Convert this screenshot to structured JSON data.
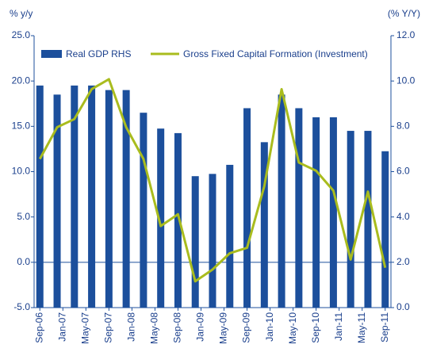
{
  "chart_data": {
    "type": "bar-line",
    "y_label": "% y/y",
    "y2_label": "(% Y/Y)",
    "x": [
      0,
      3,
      6,
      9,
      12,
      15,
      18,
      21,
      24,
      27,
      30,
      33,
      36,
      39,
      42,
      45,
      48,
      51,
      54,
      57,
      60
    ],
    "xlim": [
      -1,
      61
    ],
    "xticks": [
      {
        "value": 0,
        "label": "Sep-06"
      },
      {
        "value": 4,
        "label": "Jan-07"
      },
      {
        "value": 8,
        "label": "May-07"
      },
      {
        "value": 12,
        "label": "Sep-07"
      },
      {
        "value": 16,
        "label": "Jan-08"
      },
      {
        "value": 20,
        "label": "May-08"
      },
      {
        "value": 24,
        "label": "Sep-08"
      },
      {
        "value": 28,
        "label": "Jan-09"
      },
      {
        "value": 32,
        "label": "May-09"
      },
      {
        "value": 36,
        "label": "Sep-09"
      },
      {
        "value": 40,
        "label": "Jan-10"
      },
      {
        "value": 44,
        "label": "May-10"
      },
      {
        "value": 48,
        "label": "Sep-10"
      },
      {
        "value": 52,
        "label": "Jan-11"
      },
      {
        "value": 56,
        "label": "May-11"
      },
      {
        "value": 60,
        "label": "Sep-11"
      }
    ],
    "ylim": [
      -5,
      25
    ],
    "yticks": [
      {
        "value": -5,
        "label": "-5.0"
      },
      {
        "value": 0,
        "label": "0.0"
      },
      {
        "value": 5,
        "label": "5.0"
      },
      {
        "value": 10,
        "label": "10.0"
      },
      {
        "value": 15,
        "label": "15.0"
      },
      {
        "value": 20,
        "label": "20.0"
      },
      {
        "value": 25,
        "label": "25.0"
      }
    ],
    "y2lim": [
      0,
      12
    ],
    "y2ticks": [
      {
        "value": 0,
        "label": "0.0"
      },
      {
        "value": 2,
        "label": "2.0"
      },
      {
        "value": 4,
        "label": "4.0"
      },
      {
        "value": 6,
        "label": "6.0"
      },
      {
        "value": 8,
        "label": "8.0"
      },
      {
        "value": 10,
        "label": "10.0"
      },
      {
        "value": 12,
        "label": "12.0"
      }
    ],
    "series": [
      {
        "name": "Real GDP RHS",
        "kind": "bar",
        "axis": "y2",
        "color": "#1c4f9c",
        "values": [
          9.8,
          9.4,
          9.8,
          9.8,
          9.6,
          9.6,
          8.6,
          7.9,
          7.7,
          5.8,
          5.9,
          6.3,
          8.8,
          7.3,
          9.4,
          8.8,
          8.4,
          8.4,
          7.8,
          7.8,
          6.9
        ]
      },
      {
        "name": "Gross Fixed Capital Formation (Investment)",
        "kind": "line",
        "color": "#a9bc1e",
        "values": [
          11.4,
          14.9,
          15.8,
          19.1,
          20.2,
          14.9,
          11.4,
          4.0,
          5.3,
          -2.1,
          -0.8,
          1.0,
          1.6,
          8.4,
          19.1,
          11.0,
          10.1,
          7.9,
          0.3,
          7.8,
          -0.6
        ]
      }
    ]
  }
}
